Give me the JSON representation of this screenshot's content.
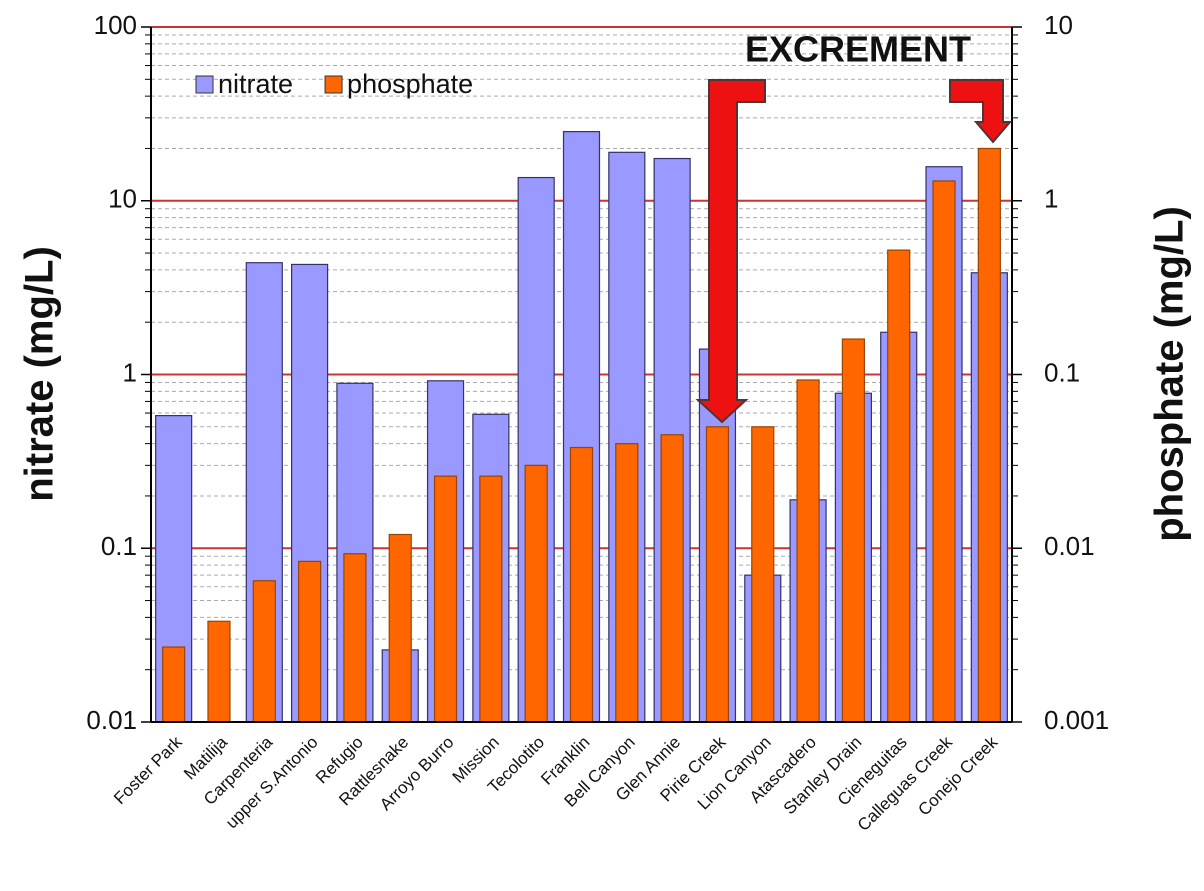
{
  "chart_data": {
    "type": "bar",
    "categories": [
      "Foster Park",
      "Matilija",
      "Carpenteria",
      "upper S.Antonio",
      "Refugio",
      "Rattlesnake",
      "Arroyo Burro",
      "Mission",
      "Tecolotito",
      "Franklin",
      "Bell Canyon",
      "Glen Annie",
      "Pirie Creek",
      "Lion Canyon",
      "Atascadero",
      "Stanley Drain",
      "Cieneguitas",
      "Calleguas Creek",
      "Conejo Creek"
    ],
    "series": [
      {
        "name": "nitrate",
        "color": "#9999ff",
        "axis": "y",
        "values": [
          0.58,
          null,
          4.4,
          4.3,
          0.89,
          0.026,
          0.92,
          0.59,
          13.6,
          25,
          19,
          17.5,
          1.4,
          0.07,
          0.19,
          0.78,
          1.75,
          15.7,
          3.85
        ]
      },
      {
        "name": "phosphate",
        "color": "#ff6600",
        "axis": "y2",
        "values": [
          0.0027,
          0.0038,
          0.0065,
          0.0084,
          0.0093,
          0.012,
          0.026,
          0.026,
          0.03,
          0.038,
          0.04,
          0.045,
          0.05,
          0.05,
          0.093,
          0.16,
          0.52,
          1.3,
          2
        ]
      }
    ],
    "ylabel": "nitrate (mg/L)",
    "y2label": "phosphate (mg/L)",
    "annotation": "EXCREMENT",
    "log_scale": true,
    "ylim": [
      0.01,
      100
    ],
    "yticks": [
      0.01,
      0.1,
      1,
      10,
      100
    ],
    "y2lim": [
      0.001,
      10
    ],
    "y2ticks": [
      0.001,
      0.01,
      0.1,
      1,
      10
    ],
    "yminorticks": [
      0.02,
      0.03,
      0.04,
      0.05,
      0.06,
      0.07,
      0.08,
      0.09,
      0.2,
      0.3,
      0.4,
      0.5,
      0.6,
      0.7,
      0.8,
      0.9,
      2,
      3,
      4,
      5,
      6,
      7,
      8,
      9,
      20,
      30,
      40,
      50,
      60,
      70,
      80,
      90
    ],
    "grid": true,
    "legend": "top-left"
  }
}
